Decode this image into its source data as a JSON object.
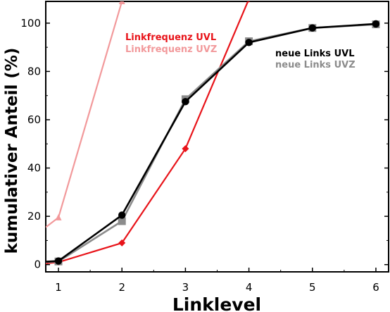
{
  "chart_data": {
    "type": "line",
    "title": "",
    "xlabel": "Linklevel",
    "ylabel": "kumulativer Anteil (%)",
    "xlim": [
      0.8,
      6.2
    ],
    "ylim": [
      -3,
      109
    ],
    "xticks": [
      1,
      2,
      3,
      4,
      5,
      6
    ],
    "yticks": [
      0,
      20,
      40,
      60,
      80,
      100
    ],
    "grid": false,
    "legend_groups": [
      {
        "position": "top-center",
        "entries": [
          "Linkfrequenz UVL",
          "Linkfrequenz UVZ"
        ]
      },
      {
        "position": "right",
        "entries": [
          "neue Links UVL",
          "neue Links UVZ"
        ]
      }
    ],
    "series": [
      {
        "name": "Linkfrequenz UVZ",
        "color": "#f2999b",
        "marker": "triangle",
        "x": [
          0.8,
          1,
          2
        ],
        "y": [
          15.5,
          19.5,
          109
        ]
      },
      {
        "name": "Linkfrequenz UVL",
        "color": "#e8141a",
        "marker": "diamond",
        "x": [
          0.8,
          1,
          2,
          3,
          4
        ],
        "y": [
          0.5,
          1,
          9,
          48,
          110
        ]
      },
      {
        "name": "neue Links UVZ",
        "color": "#8c8c8c",
        "marker": "square",
        "x": [
          0.8,
          1,
          2,
          3,
          4,
          5,
          6
        ],
        "y": [
          1,
          1.3,
          18,
          68.5,
          92.5,
          98,
          99.5
        ]
      },
      {
        "name": "neue Links UVL",
        "color": "#000000",
        "marker": "circle",
        "x": [
          0.8,
          1,
          2,
          3,
          4,
          5,
          6
        ],
        "y": [
          1.2,
          1.5,
          20.5,
          67.5,
          92,
          98,
          99.7
        ]
      }
    ]
  }
}
